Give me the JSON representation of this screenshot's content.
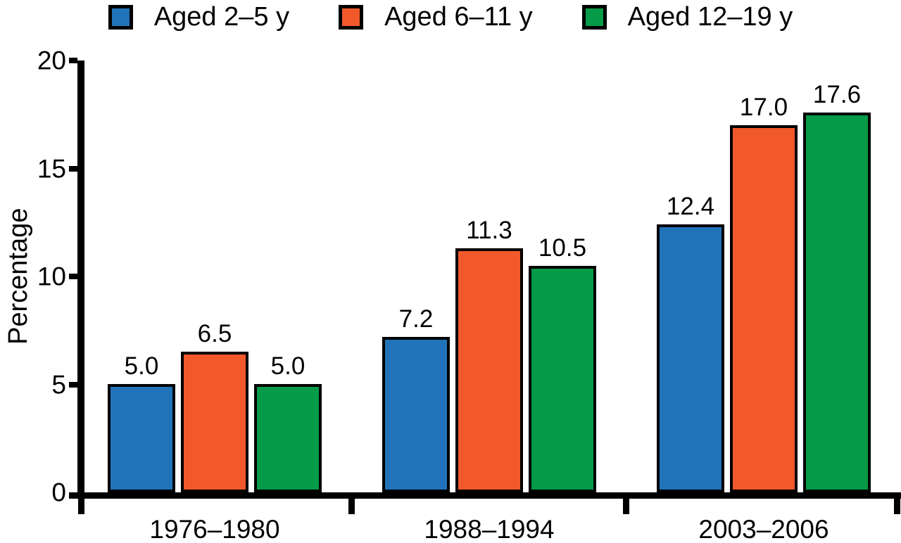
{
  "chart_data": {
    "type": "bar",
    "title": "",
    "ylabel": "Percentage",
    "xlabel": "",
    "ylim": [
      0,
      20
    ],
    "yticks": [
      0,
      5,
      10,
      15,
      20
    ],
    "grid": false,
    "legend_position": "top",
    "categories": [
      "1976–1980",
      "1988–1994",
      "2003–2006"
    ],
    "series": [
      {
        "name": "Aged 2–5 y",
        "color": "#2173B9",
        "values": [
          5.0,
          7.2,
          12.4
        ]
      },
      {
        "name": "Aged 6–11 y",
        "color": "#F1592B",
        "values": [
          6.5,
          11.3,
          17.0
        ]
      },
      {
        "name": "Aged 12–19 y",
        "color": "#059B48",
        "values": [
          5.0,
          10.5,
          17.6
        ]
      }
    ],
    "bar_value_labels": [
      [
        "5.0",
        "6.5",
        "5.0"
      ],
      [
        "7.2",
        "11.3",
        "10.5"
      ],
      [
        "12.4",
        "17.0",
        "17.6"
      ]
    ],
    "axis_color": "#000000",
    "text_color": "#000000",
    "background": "#FFFFFF"
  }
}
